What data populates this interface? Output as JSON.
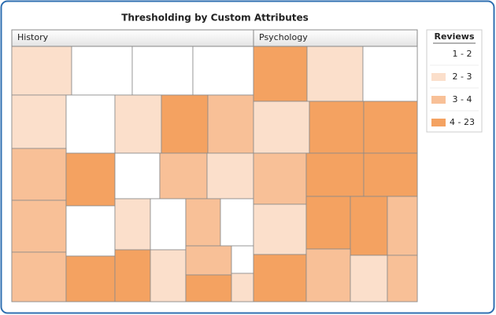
{
  "chart_data": {
    "type": "treemap",
    "title": "Thresholding by Custom Attributes",
    "legend": {
      "title": "Reviews",
      "position": "right",
      "items": [
        {
          "label": "1 - 2",
          "color": "#ffffff"
        },
        {
          "label": "2 - 3",
          "color": "#fbdfcb"
        },
        {
          "label": "3 - 4",
          "color": "#f8c097"
        },
        {
          "label": "4 - 23",
          "color": "#f4a261"
        }
      ]
    },
    "groups": [
      {
        "name": "History",
        "cells": [
          1,
          0,
          0,
          0,
          1,
          0,
          1,
          3,
          2,
          2,
          2,
          2,
          3,
          0,
          3,
          0,
          2,
          1,
          1,
          3,
          0,
          2,
          0,
          1,
          2,
          0,
          3,
          1
        ]
      },
      {
        "name": "Psychology",
        "cells": [
          3,
          1,
          0,
          1,
          3,
          3,
          2,
          1,
          3,
          3,
          3,
          3,
          3,
          2,
          2,
          1,
          2
        ]
      }
    ]
  }
}
